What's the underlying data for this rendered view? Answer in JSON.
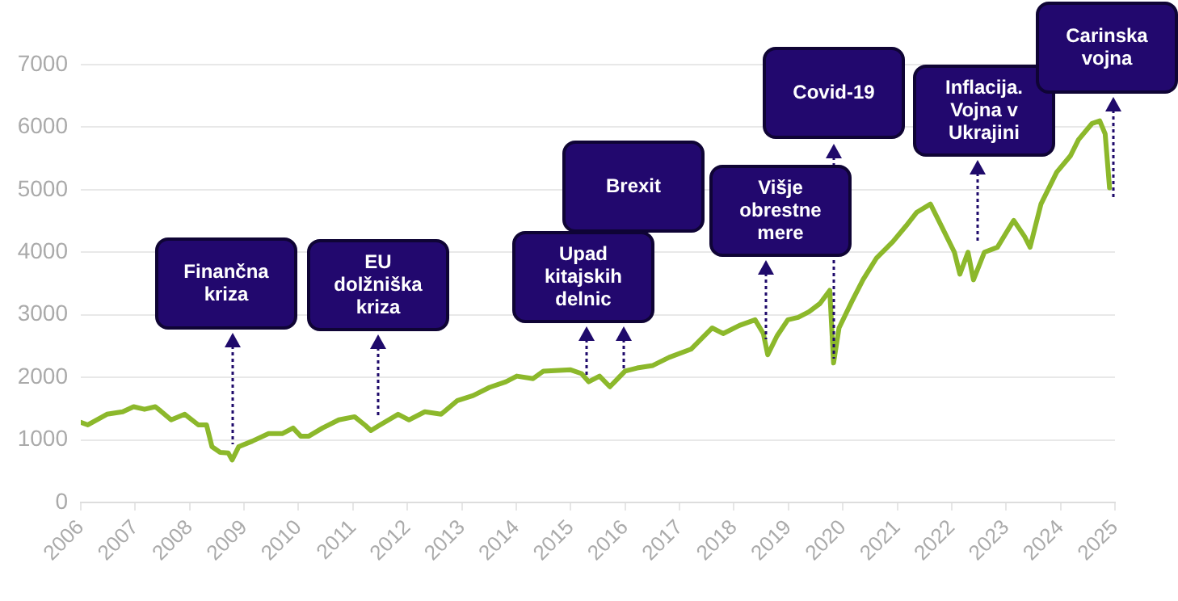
{
  "chart_data": {
    "type": "line",
    "xlim": [
      2006,
      2025
    ],
    "xticks": [
      2006,
      2007,
      2008,
      2009,
      2010,
      2011,
      2012,
      2013,
      2014,
      2015,
      2016,
      2017,
      2018,
      2019,
      2020,
      2021,
      2022,
      2023,
      2024,
      2025
    ],
    "ylim": [
      0,
      7000
    ],
    "yticks": [
      0,
      1000,
      2000,
      3000,
      4000,
      5000,
      6000,
      7000
    ],
    "grid": "y",
    "legend": false,
    "marker": "none",
    "line_style": "solid",
    "series": [
      {
        "color": "#8cb82b",
        "x": [
          2006.0,
          2006.13,
          2006.48,
          2006.77,
          2006.97,
          2007.17,
          2007.37,
          2007.47,
          2007.66,
          2007.91,
          2008.16,
          2008.31,
          2008.41,
          2008.56,
          2008.71,
          2008.78,
          2008.9,
          2009.15,
          2009.45,
          2009.7,
          2009.9,
          2010.04,
          2010.19,
          2010.44,
          2010.74,
          2011.03,
          2011.23,
          2011.33,
          2011.48,
          2011.83,
          2012.03,
          2012.32,
          2012.62,
          2012.92,
          2013.21,
          2013.51,
          2013.81,
          2014.01,
          2014.31,
          2014.5,
          2015.0,
          2015.2,
          2015.33,
          2015.53,
          2015.72,
          2016.0,
          2016.22,
          2016.51,
          2016.81,
          2017.21,
          2017.6,
          2017.8,
          2018.1,
          2018.39,
          2018.54,
          2018.62,
          2018.79,
          2018.99,
          2019.18,
          2019.38,
          2019.58,
          2019.76,
          2019.83,
          2019.93,
          2020.17,
          2020.37,
          2020.62,
          2020.92,
          2021.16,
          2021.36,
          2021.61,
          2021.76,
          2022.05,
          2022.15,
          2022.3,
          2022.4,
          2022.6,
          2022.84,
          2023.14,
          2023.34,
          2023.44,
          2023.64,
          2023.93,
          2024.18,
          2024.33,
          2024.58,
          2024.72,
          2024.82,
          2024.9
        ],
        "values": [
          1280,
          1240,
          1410,
          1450,
          1530,
          1490,
          1530,
          1460,
          1320,
          1410,
          1240,
          1240,
          890,
          800,
          790,
          680,
          890,
          980,
          1100,
          1100,
          1190,
          1060,
          1060,
          1190,
          1320,
          1370,
          1230,
          1150,
          1230,
          1410,
          1320,
          1450,
          1410,
          1630,
          1710,
          1840,
          1930,
          2020,
          1980,
          2100,
          2120,
          2060,
          1930,
          2020,
          1850,
          2100,
          2150,
          2190,
          2320,
          2450,
          2790,
          2700,
          2830,
          2920,
          2700,
          2360,
          2660,
          2920,
          2960,
          3050,
          3180,
          3390,
          2230,
          2790,
          3220,
          3560,
          3910,
          4170,
          4420,
          4640,
          4770,
          4510,
          4000,
          3650,
          4000,
          3560,
          4000,
          4080,
          4510,
          4250,
          4080,
          4770,
          5280,
          5540,
          5800,
          6060,
          6100,
          5890,
          5030
        ]
      }
    ],
    "annotations": [
      "Finančna kriza",
      "EU dolžniška kriza",
      "Brexit",
      "Upad kitajskih delnic",
      "Covid-19",
      "Višje obrestne mere",
      "Inflacija. Vojna v Ukrajini",
      "Carinska vojna"
    ]
  }
}
